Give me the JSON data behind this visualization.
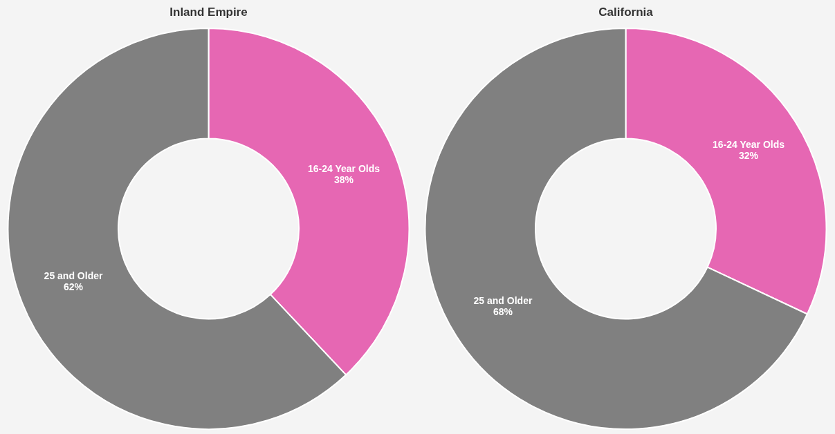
{
  "chart_data": [
    {
      "type": "donut",
      "title": "Inland Empire",
      "categories": [
        "16-24 Year Olds",
        "25 and Older"
      ],
      "values": [
        38,
        62
      ],
      "value_labels": [
        "38%",
        "62%"
      ],
      "colors": [
        "#e667b3",
        "#808080"
      ]
    },
    {
      "type": "donut",
      "title": "California",
      "categories": [
        "16-24 Year Olds",
        "25 and Older"
      ],
      "values": [
        32,
        68
      ],
      "value_labels": [
        "32%",
        "68%"
      ],
      "colors": [
        "#e667b3",
        "#808080"
      ]
    }
  ]
}
